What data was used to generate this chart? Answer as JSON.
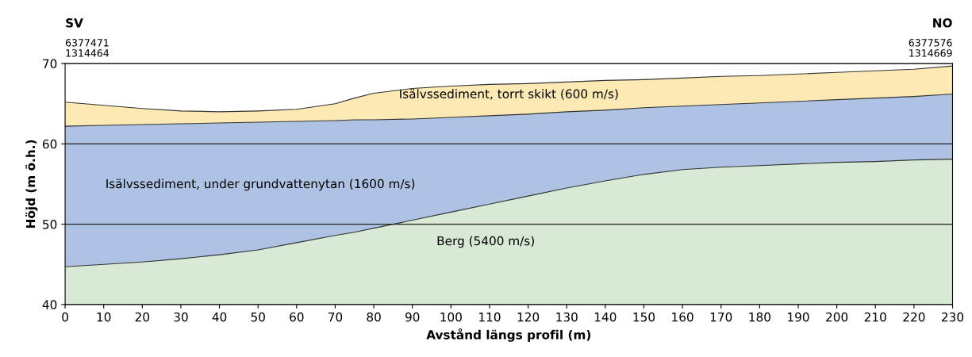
{
  "chart_data": {
    "type": "area",
    "xlabel": "Avstånd längs profil (m)",
    "ylabel": "Höjd (m ö.h.)",
    "x": [
      0,
      10,
      20,
      30,
      40,
      50,
      60,
      70,
      75,
      80,
      90,
      100,
      110,
      120,
      130,
      140,
      150,
      160,
      170,
      180,
      190,
      200,
      210,
      220,
      230
    ],
    "series": [
      {
        "color": "#fce9b4",
        "values": [
          65.2,
          64.8,
          64.4,
          64.1,
          64.0,
          64.1,
          64.3,
          65.0,
          65.7,
          66.3,
          66.9,
          67.2,
          67.4,
          67.5,
          67.7,
          67.9,
          68.0,
          68.2,
          68.4,
          68.5,
          68.7,
          68.9,
          69.1,
          69.3,
          69.7
        ]
      },
      {
        "color": "#aec3e3",
        "values": [
          62.2,
          62.3,
          62.4,
          62.5,
          62.6,
          62.7,
          62.8,
          62.9,
          63.0,
          63.0,
          63.1,
          63.3,
          63.5,
          63.7,
          64.0,
          64.2,
          64.5,
          64.7,
          64.9,
          65.1,
          65.3,
          65.5,
          65.7,
          65.9,
          66.2
        ]
      },
      {
        "color": "#d8ead5",
        "values": [
          44.7,
          45.0,
          45.3,
          45.7,
          46.2,
          46.8,
          47.7,
          48.6,
          49.0,
          49.5,
          50.5,
          51.5,
          52.5,
          53.5,
          54.5,
          55.4,
          56.2,
          56.8,
          57.1,
          57.3,
          57.5,
          57.7,
          57.8,
          58.0,
          58.1
        ]
      }
    ],
    "xlim": [
      0,
      230
    ],
    "xticks": [
      0,
      10,
      20,
      30,
      40,
      50,
      60,
      70,
      80,
      90,
      100,
      110,
      120,
      130,
      140,
      150,
      160,
      170,
      180,
      190,
      200,
      210,
      220,
      230
    ],
    "ylim": [
      40,
      70
    ],
    "yticks": [
      40,
      50,
      60,
      70
    ],
    "grid": "y",
    "annotations": [
      "SV",
      "6377471\n1314464",
      "NO",
      "6377576\n1314669",
      "Isälvssediment, torrt skikt (600 m/s)",
      "Isälvssediment, under grundvattenytan (1600 m/s)",
      "Berg (5400 m/s)"
    ]
  }
}
